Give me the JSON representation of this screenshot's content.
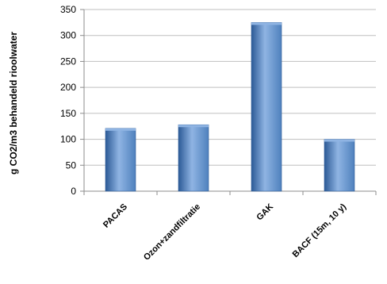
{
  "chart_data": {
    "type": "bar",
    "title": "",
    "xlabel": "",
    "ylabel": "g CO2/m3 behandeld rioolwater",
    "categories": [
      "PACAS",
      "Ozon+zandfiltratie",
      "GAK",
      "BACF (15m, 10 y)"
    ],
    "values": [
      121,
      128,
      325,
      100
    ],
    "ylim": [
      0,
      350
    ],
    "yticks": [
      "0",
      "50",
      "100",
      "150",
      "200",
      "250",
      "300",
      "350"
    ],
    "grid": true,
    "bar_color": "#4f81bd",
    "bar_dark_color": "#2c5a96",
    "bar_light_color": "#8fb4e3"
  }
}
